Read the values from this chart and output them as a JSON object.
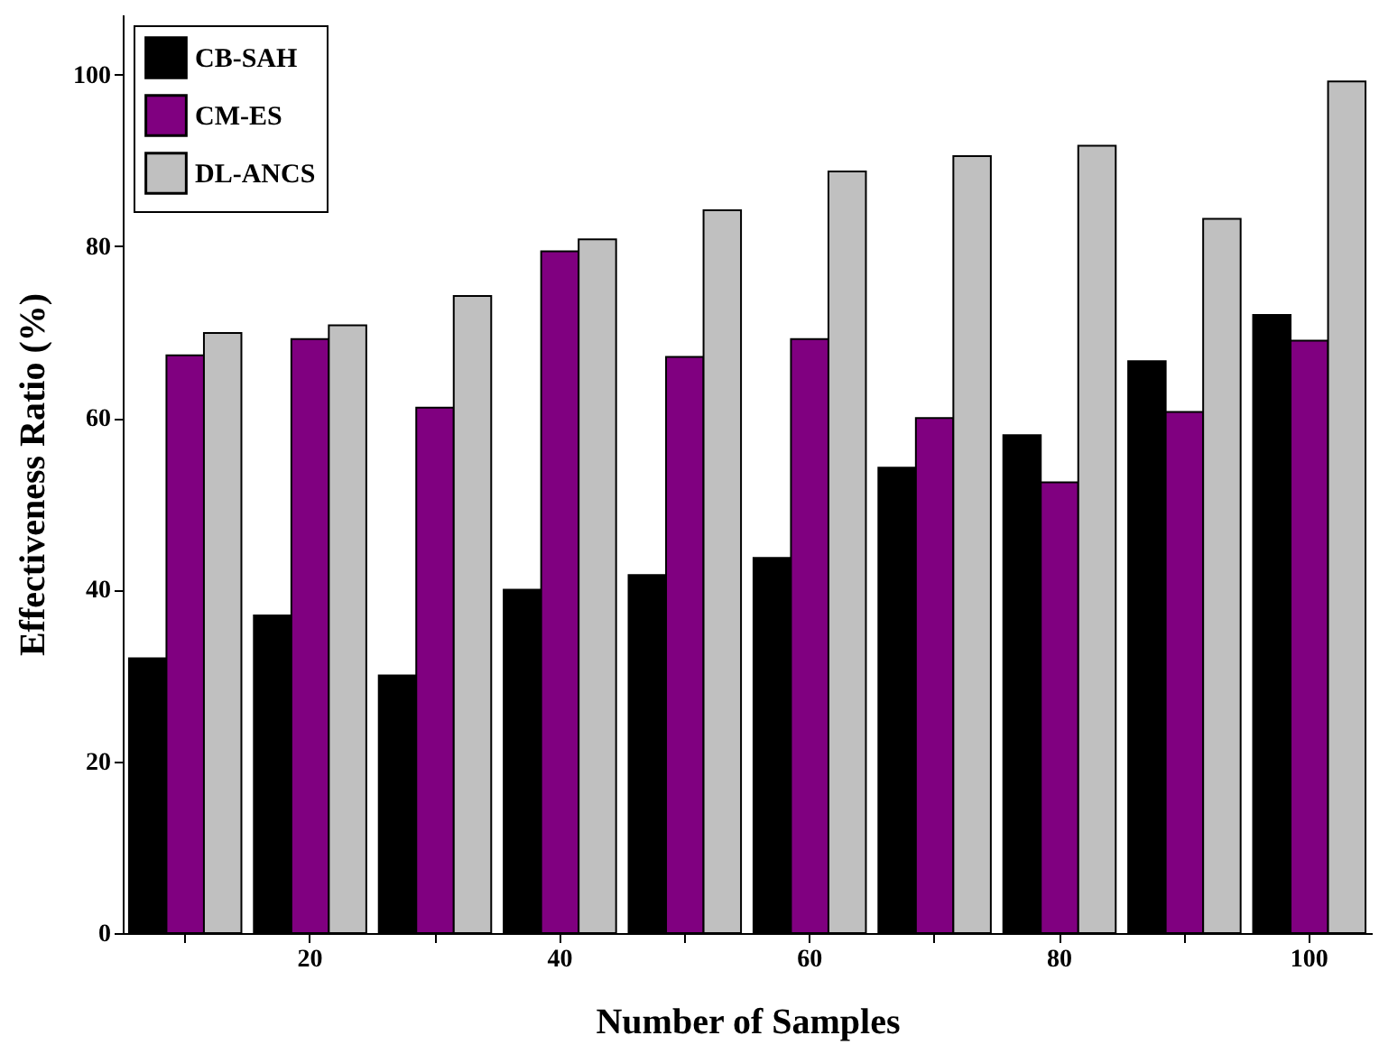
{
  "chart_data": {
    "type": "bar",
    "xlabel": "Number of Samples",
    "ylabel": "Effectiveness Ratio (%)",
    "categories": [
      null,
      "20",
      null,
      "40",
      null,
      "60",
      null,
      "80",
      null,
      "100"
    ],
    "series": [
      {
        "name": "CB-SAH",
        "color": "#000000",
        "values": [
          32,
          37,
          30,
          40,
          41.7,
          43.7,
          54.2,
          58,
          66.6,
          72
        ]
      },
      {
        "name": "CM-ES",
        "color": "#800080",
        "values": [
          67.3,
          69.2,
          61.2,
          79.4,
          67.1,
          69.2,
          60,
          52.5,
          60.7,
          69
        ]
      },
      {
        "name": "DL-ANCS",
        "color": "#c0c0c0",
        "values": [
          69.9,
          70.8,
          74.2,
          80.8,
          84.2,
          88.7,
          90.5,
          91.7,
          83.2,
          99.2
        ]
      }
    ],
    "ylim": [
      0,
      107
    ],
    "yticks": [
      0,
      20,
      40,
      60,
      80,
      100
    ],
    "grid": false,
    "legend": "top left"
  }
}
